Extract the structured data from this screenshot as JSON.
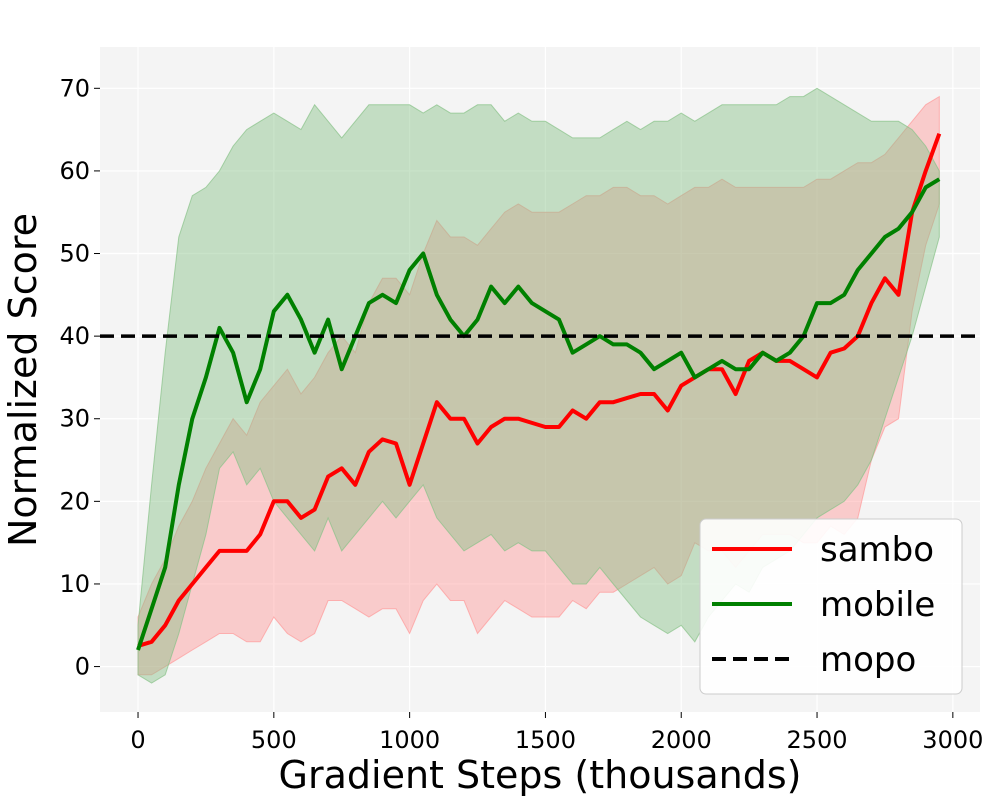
{
  "chart_data": {
    "type": "line",
    "title": "",
    "xlabel": "Gradient Steps (thousands)",
    "ylabel": "Normalized Score",
    "xlim": [
      -140,
      3100
    ],
    "ylim": [
      -5.5,
      75
    ],
    "x_ticks": [
      0,
      500,
      1000,
      1500,
      2000,
      2500,
      3000
    ],
    "y_ticks": [
      0,
      10,
      20,
      30,
      40,
      50,
      60,
      70
    ],
    "grid": true,
    "legend_position": "lower-right",
    "background": "#f4f4f4",
    "series": [
      {
        "name": "sambo",
        "color": "#ff0000",
        "band_color": "#ff9999",
        "x": [
          0,
          50,
          100,
          150,
          200,
          250,
          300,
          350,
          400,
          450,
          500,
          550,
          600,
          650,
          700,
          750,
          800,
          850,
          900,
          950,
          1000,
          1050,
          1100,
          1150,
          1200,
          1250,
          1300,
          1350,
          1400,
          1450,
          1500,
          1550,
          1600,
          1650,
          1700,
          1750,
          1800,
          1850,
          1900,
          1950,
          2000,
          2050,
          2100,
          2150,
          2200,
          2250,
          2300,
          2350,
          2400,
          2450,
          2500,
          2550,
          2600,
          2650,
          2700,
          2750,
          2800,
          2850,
          2900,
          2950
        ],
        "y": [
          2.5,
          3,
          5,
          8,
          10,
          12,
          14,
          14,
          14,
          16,
          20,
          20,
          18,
          19,
          23,
          24,
          22,
          26,
          27.5,
          27,
          22,
          27,
          32,
          30,
          30,
          27,
          29,
          30,
          30,
          29.5,
          29,
          29,
          31,
          30,
          32,
          32,
          32.5,
          33,
          33,
          31,
          34,
          35,
          36,
          36,
          33,
          37,
          38,
          37,
          37,
          36,
          35,
          38,
          38.5,
          40,
          44,
          47,
          45,
          55,
          60,
          64.5
        ],
        "y_upper": [
          6,
          10,
          13,
          17,
          20,
          24,
          27,
          30,
          28,
          32,
          34,
          36,
          33,
          35,
          38,
          40,
          38,
          44,
          47,
          47,
          45,
          50,
          54,
          52,
          52,
          51,
          53,
          55,
          56,
          55,
          55,
          55,
          56,
          57,
          57,
          58,
          58,
          57,
          57,
          56,
          57,
          58,
          58,
          59,
          58,
          58,
          58,
          58,
          58,
          58,
          59,
          59,
          60,
          61,
          61,
          62,
          64,
          66,
          68,
          69
        ],
        "y_lower": [
          -1,
          -1,
          0,
          1,
          2,
          3,
          4,
          4,
          3,
          3,
          6,
          4,
          3,
          4,
          8,
          8,
          7,
          6,
          7,
          7,
          4,
          8,
          10,
          8,
          8,
          4,
          6,
          8,
          7,
          6,
          6,
          6,
          8,
          7,
          9,
          9,
          10,
          11,
          12,
          10,
          11,
          15,
          14,
          14,
          12,
          14,
          16,
          16,
          16,
          15,
          15,
          17,
          16,
          18,
          25,
          29,
          30,
          43,
          51,
          56
        ]
      },
      {
        "name": "mobile",
        "color": "#008000",
        "band_color": "#88c288",
        "x": [
          0,
          50,
          100,
          150,
          200,
          250,
          300,
          350,
          400,
          450,
          500,
          550,
          600,
          650,
          700,
          750,
          800,
          850,
          900,
          950,
          1000,
          1050,
          1100,
          1150,
          1200,
          1250,
          1300,
          1350,
          1400,
          1450,
          1500,
          1550,
          1600,
          1650,
          1700,
          1750,
          1800,
          1850,
          1900,
          1950,
          2000,
          2050,
          2100,
          2150,
          2200,
          2250,
          2300,
          2350,
          2400,
          2450,
          2500,
          2550,
          2600,
          2650,
          2700,
          2750,
          2800,
          2850,
          2900,
          2950
        ],
        "y": [
          2,
          7,
          12,
          22,
          30,
          35,
          41,
          38,
          32,
          36,
          43,
          45,
          42,
          38,
          42,
          36,
          40,
          44,
          45,
          44,
          48,
          50,
          45,
          42,
          40,
          42,
          46,
          44,
          46,
          44,
          43,
          42,
          38,
          39,
          40,
          39,
          39,
          38,
          36,
          37,
          38,
          35,
          36,
          37,
          36,
          36,
          38,
          37,
          38,
          40,
          44,
          44,
          45,
          48,
          50,
          52,
          53,
          55,
          58,
          59
        ],
        "y_upper": [
          5,
          22,
          38,
          52,
          57,
          58,
          60,
          63,
          65,
          66,
          67,
          66,
          65,
          68,
          66,
          64,
          66,
          68,
          68,
          68,
          68,
          67,
          68,
          67,
          67,
          68,
          68,
          66,
          67,
          66,
          66,
          65,
          64,
          64,
          64,
          65,
          66,
          65,
          66,
          66,
          67,
          66,
          67,
          68,
          68,
          68,
          68,
          68,
          69,
          69,
          70,
          69,
          68,
          67,
          66,
          66,
          66,
          65,
          63,
          60
        ],
        "y_lower": [
          -1,
          -2,
          -1,
          4,
          10,
          16,
          24,
          26,
          22,
          24,
          20,
          18,
          16,
          14,
          18,
          14,
          16,
          18,
          20,
          18,
          20,
          22,
          18,
          16,
          14,
          15,
          16,
          14,
          15,
          14,
          14,
          12,
          10,
          10,
          12,
          10,
          8,
          6,
          5,
          4,
          5,
          3,
          6,
          8,
          10,
          9,
          12,
          13,
          14,
          16,
          18,
          19,
          20,
          22,
          25,
          30,
          35,
          40,
          46,
          52
        ]
      },
      {
        "name": "mopo",
        "color": "#000000",
        "style": "dashed",
        "constant_y": 40
      }
    ]
  }
}
